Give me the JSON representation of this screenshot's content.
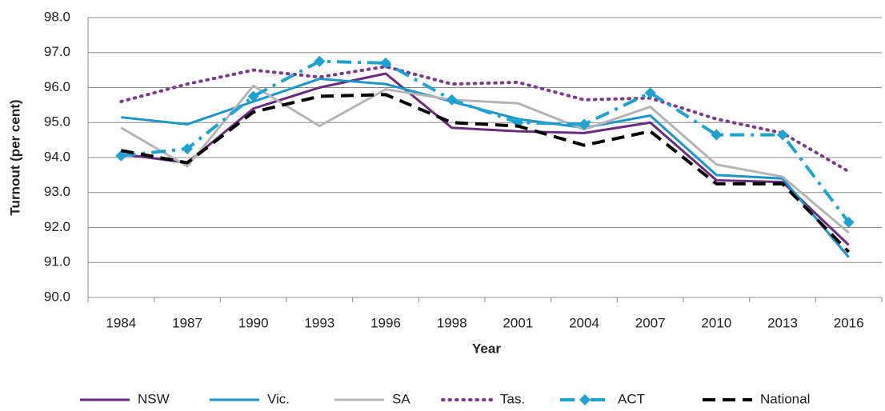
{
  "chart_data": {
    "type": "line",
    "x_label": "Year",
    "y_label": "Turnout (per cent)",
    "categories": [
      "1984",
      "1987",
      "1990",
      "1993",
      "1996",
      "1998",
      "2001",
      "2004",
      "2007",
      "2010",
      "2013",
      "2016"
    ],
    "ylim": [
      90,
      98
    ],
    "yticks": [
      {
        "value": 90,
        "label": "90.0"
      },
      {
        "value": 91,
        "label": "91.0"
      },
      {
        "value": 92,
        "label": "92.0"
      },
      {
        "value": 93,
        "label": "93.0"
      },
      {
        "value": 94,
        "label": "94.0"
      },
      {
        "value": 95,
        "label": "95.0"
      },
      {
        "value": 96,
        "label": "96.0"
      },
      {
        "value": 97,
        "label": "97.0"
      },
      {
        "value": 98,
        "label": "98.0"
      }
    ],
    "grid": true,
    "legend": "bottom",
    "series": [
      {
        "name": "NSW",
        "color": "#6a2b7d",
        "style": "solid",
        "values": [
          94.1,
          93.85,
          95.4,
          96.0,
          96.4,
          94.85,
          94.75,
          94.7,
          95.0,
          93.35,
          93.3,
          91.5
        ]
      },
      {
        "name": "Vic.",
        "color": "#1b96c8",
        "style": "solid",
        "values": [
          95.15,
          94.95,
          95.6,
          96.25,
          96.1,
          95.6,
          95.1,
          94.85,
          95.2,
          93.5,
          93.4,
          91.15
        ]
      },
      {
        "name": "SA",
        "color": "#b5b5b5",
        "style": "solid",
        "values": [
          94.85,
          93.75,
          96.05,
          94.9,
          95.95,
          95.65,
          95.55,
          94.8,
          95.45,
          93.8,
          93.45,
          91.85
        ]
      },
      {
        "name": "Tas.",
        "color": "#7b3b8c",
        "style": "dotted",
        "values": [
          95.6,
          96.1,
          96.5,
          96.3,
          96.6,
          96.1,
          96.15,
          95.65,
          95.7,
          95.1,
          94.7,
          93.6
        ]
      },
      {
        "name": "ACT",
        "color": "#1ea2cf",
        "style": "dashdot",
        "marker": "diamond",
        "values": [
          94.05,
          94.25,
          95.75,
          96.75,
          96.7,
          95.65,
          95.0,
          94.95,
          95.85,
          94.65,
          94.65,
          92.15
        ]
      },
      {
        "name": "National",
        "color": "#000000",
        "style": "dashed",
        "values": [
          94.2,
          93.85,
          95.3,
          95.75,
          95.8,
          95.0,
          94.9,
          94.35,
          94.75,
          93.25,
          93.25,
          91.3
        ]
      }
    ]
  }
}
